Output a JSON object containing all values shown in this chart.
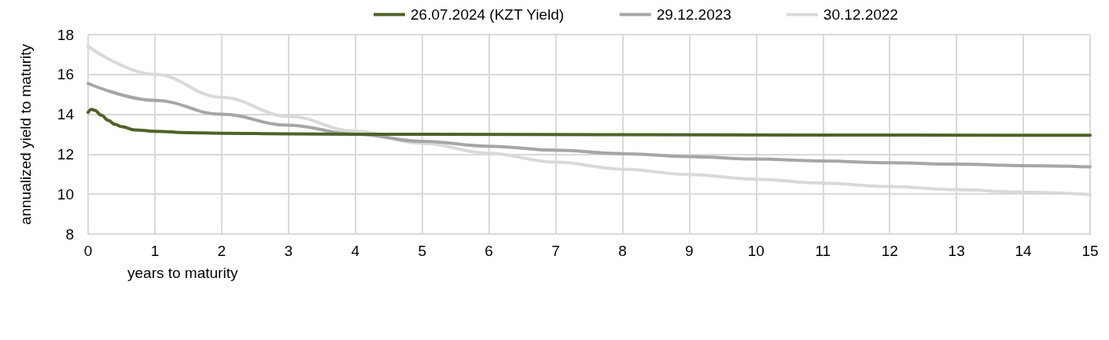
{
  "chart_data": {
    "type": "line",
    "xlabel": "years to maturity",
    "ylabel": "annualized yield to maturity",
    "xlim": [
      0,
      15
    ],
    "xticks": [
      0,
      1,
      2,
      3,
      4,
      5,
      6,
      7,
      8,
      9,
      10,
      11,
      12,
      13,
      14,
      15
    ],
    "ylim": [
      8,
      18
    ],
    "yticks": [
      8,
      10,
      12,
      14,
      16,
      18
    ],
    "grid": true,
    "legend": "top",
    "marker": "none",
    "line_style": "solid",
    "series": [
      {
        "name": "26.07.2024 (KZT Yield)",
        "color": "#4f6228",
        "x": [
          0,
          0.05,
          0.1,
          0.2,
          0.3,
          0.4,
          0.5,
          0.7,
          1,
          1.5,
          2,
          3,
          4,
          5,
          8,
          11,
          15
        ],
        "values": [
          14.1,
          14.25,
          14.2,
          13.95,
          13.7,
          13.5,
          13.38,
          13.22,
          13.15,
          13.08,
          13.05,
          13.02,
          13,
          13,
          12.98,
          12.96,
          12.95
        ]
      },
      {
        "name": "29.12.2023",
        "color": "#a6a6a6",
        "x": [
          0,
          1,
          2,
          3,
          4,
          5,
          6,
          7,
          8,
          9,
          10,
          11,
          12,
          13,
          14,
          15
        ],
        "values": [
          15.55,
          14.7,
          14,
          13.45,
          13,
          12.65,
          12.4,
          12.2,
          12.03,
          11.88,
          11.76,
          11.66,
          11.57,
          11.5,
          11.43,
          11.37
        ]
      },
      {
        "name": "30.12.2022",
        "color": "#d9d9d9",
        "x": [
          0,
          1,
          2,
          3,
          4,
          5,
          6,
          7,
          8,
          9,
          10,
          11,
          12,
          13,
          14,
          15
        ],
        "values": [
          17.4,
          16,
          14.85,
          13.9,
          13.15,
          12.55,
          12.05,
          11.6,
          11.25,
          10.98,
          10.75,
          10.55,
          10.38,
          10.22,
          10.1,
          9.98
        ]
      }
    ]
  }
}
